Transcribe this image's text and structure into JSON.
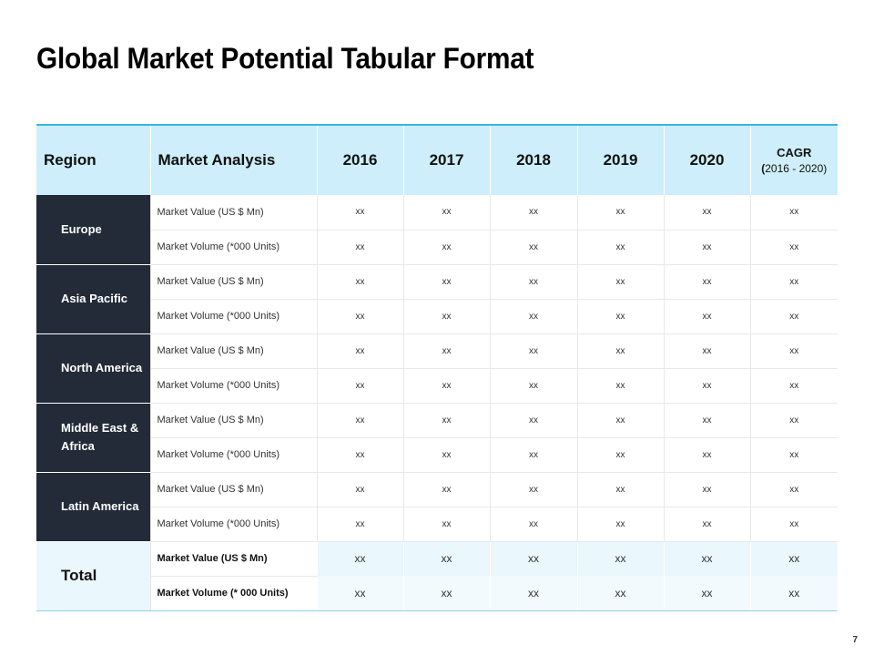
{
  "title": "Global Market Potential Tabular Format",
  "page_number": "7",
  "table": {
    "headers": {
      "region": "Region",
      "analysis": "Market Analysis",
      "years": [
        "2016",
        "2017",
        "2018",
        "2019",
        "2020"
      ],
      "cagr_label": "CAGR",
      "cagr_open": "(",
      "cagr_range": "2016 - 2020)"
    },
    "regions": [
      {
        "name": "Europe",
        "rows": [
          {
            "metric": "Market Value (US $ Mn)",
            "values": [
              "xx",
              "xx",
              "xx",
              "xx",
              "xx",
              "xx"
            ]
          },
          {
            "metric": "Market Volume (*000 Units)",
            "values": [
              "xx",
              "xx",
              "xx",
              "xx",
              "xx",
              "xx"
            ]
          }
        ]
      },
      {
        "name": "Asia Pacific",
        "rows": [
          {
            "metric": "Market Value (US $ Mn)",
            "values": [
              "xx",
              "xx",
              "xx",
              "xx",
              "xx",
              "xx"
            ]
          },
          {
            "metric": "Market Volume (*000 Units)",
            "values": [
              "xx",
              "xx",
              "xx",
              "xx",
              "xx",
              "xx"
            ]
          }
        ]
      },
      {
        "name": "North America",
        "rows": [
          {
            "metric": "Market Value (US $ Mn)",
            "values": [
              "xx",
              "xx",
              "xx",
              "xx",
              "xx",
              "xx"
            ]
          },
          {
            "metric": "Market Volume (*000 Units)",
            "values": [
              "xx",
              "xx",
              "xx",
              "xx",
              "xx",
              "xx"
            ]
          }
        ]
      },
      {
        "name": "Middle East & Africa",
        "rows": [
          {
            "metric": "Market Value (US $ Mn)",
            "values": [
              "xx",
              "xx",
              "xx",
              "xx",
              "xx",
              "xx"
            ]
          },
          {
            "metric": "Market Volume (*000 Units)",
            "values": [
              "xx",
              "xx",
              "xx",
              "xx",
              "xx",
              "xx"
            ]
          }
        ]
      },
      {
        "name": "Latin America",
        "rows": [
          {
            "metric": "Market Value (US $ Mn)",
            "values": [
              "xx",
              "xx",
              "xx",
              "xx",
              "xx",
              "xx"
            ]
          },
          {
            "metric": "Market Volume (*000 Units)",
            "values": [
              "xx",
              "xx",
              "xx",
              "xx",
              "xx",
              "xx"
            ]
          }
        ]
      }
    ],
    "total": {
      "label": "Total",
      "rows": [
        {
          "metric": "Market Value (US $ Mn)",
          "values": [
            "xx",
            "xx",
            "xx",
            "xx",
            "xx",
            "xx"
          ]
        },
        {
          "metric": "Market Volume (* 000 Units)",
          "values": [
            "xx",
            "xx",
            "xx",
            "xx",
            "xx",
            "xx"
          ]
        }
      ]
    }
  },
  "colors": {
    "header_bg": "#cdeefa",
    "header_border": "#38b4e4",
    "region_bg": "#232b38",
    "total_bg": "#eaf7fc"
  }
}
